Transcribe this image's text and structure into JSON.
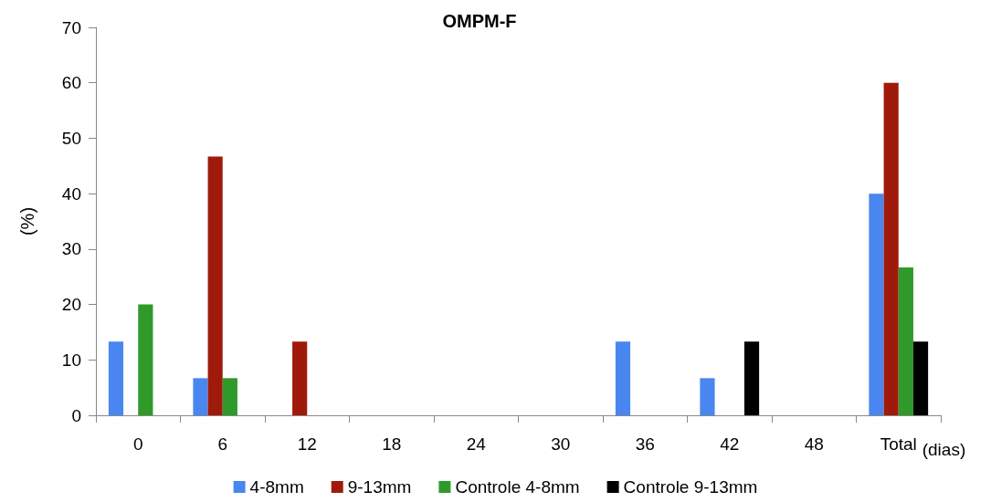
{
  "chart_data": {
    "type": "bar",
    "title": "OMPM-F",
    "xlabel": "(dias)",
    "ylabel": "(%)",
    "categories": [
      "0",
      "6",
      "12",
      "18",
      "24",
      "30",
      "36",
      "42",
      "48",
      "Total"
    ],
    "series": [
      {
        "name": "4-8mm",
        "color": "#4a86f0",
        "values": [
          13.3,
          6.7,
          0,
          0,
          0,
          0,
          13.3,
          6.7,
          0,
          40
        ]
      },
      {
        "name": "9-13mm",
        "color": "#a01a0c",
        "values": [
          0,
          46.7,
          13.3,
          0,
          0,
          0,
          0,
          0,
          0,
          60
        ]
      },
      {
        "name": "Controle 4-8mm",
        "color": "#2f9a2a",
        "values": [
          20,
          6.7,
          0,
          0,
          0,
          0,
          0,
          0,
          0,
          26.7
        ]
      },
      {
        "name": "Controle 9-13mm",
        "color": "#000000",
        "values": [
          0,
          0,
          0,
          0,
          0,
          0,
          0,
          13.3,
          0,
          13.3
        ]
      }
    ],
    "ylim": [
      0,
      70
    ],
    "yticks": [
      0,
      10,
      20,
      30,
      40,
      50,
      60,
      70
    ],
    "grid": false,
    "legend": "bottom"
  }
}
